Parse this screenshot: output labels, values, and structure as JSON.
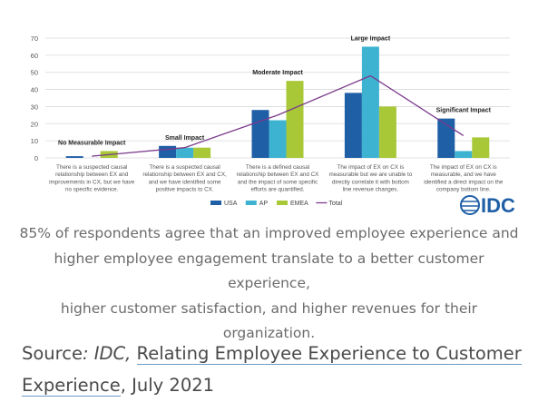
{
  "chart_data": {
    "type": "bar",
    "categories": [
      "There is a suspected causal relationship between EX and improvements in CX, but we have no specific evidence.",
      "There is a suspected causal relationship between EX and CX, and we have identified some positive impacts to CX.",
      "There is a defined causal relationship between EX and CX and the impact of some specific efforts are quantified.",
      "The impact of EX on CX is measurable but we are unable to directly correlate it with bottom line revenue changes.",
      "The impact of EX on CX is measurable, and we have identified a direct impact on the company bottom line."
    ],
    "category_lines": [
      [
        "There is a suspected causal",
        "relationship between EX and",
        "improvements in CX, but we have",
        "no specific evidence."
      ],
      [
        "There is a suspected causal",
        "relationship between EX and CX,",
        "and we have identified some",
        "positive impacts to CX."
      ],
      [
        "There is a defined causal",
        "relationship between EX and CX",
        "and the impact of some specific",
        "efforts are quantified."
      ],
      [
        "The impact of EX on CX is",
        "measurable but we are unable to",
        "directly correlate it with bottom",
        "line revenue changes."
      ],
      [
        "The impact of EX on CX is",
        "measurable, and we have",
        "identified a direct impact on the",
        "company bottom line."
      ]
    ],
    "group_labels": [
      "No Measurable Impact",
      "Small Impact",
      "Moderate Impact",
      "Large  Impact",
      "Significant  Impact"
    ],
    "series": [
      {
        "name": "USA",
        "color": "#1f5fa6",
        "values": [
          1,
          7,
          28,
          38,
          23
        ]
      },
      {
        "name": "AP",
        "color": "#3eb3d1",
        "values": [
          0,
          6,
          22,
          65,
          4
        ]
      },
      {
        "name": "EMEA",
        "color": "#a8c838",
        "values": [
          4,
          6,
          45,
          30,
          12
        ]
      }
    ],
    "line_series": {
      "name": "Total",
      "color": "#7b3a8c",
      "values": [
        1,
        6,
        25,
        48,
        13
      ]
    },
    "ylim": [
      0,
      70
    ],
    "yticks": [
      0,
      10,
      20,
      30,
      40,
      50,
      60,
      70
    ],
    "grid": true,
    "legend_position": "bottom-center"
  },
  "logo": {
    "text": "IDC"
  },
  "caption": {
    "lines": [
      "85% of respondents agree that an improved employee experience and",
      "higher employee engagement translate to a better customer experience,",
      "higher customer satisfaction, and higher revenues for their organization."
    ]
  },
  "source": {
    "prefix": "Source",
    "colon": ":",
    "publisher": " IDC,",
    "link_line1": "Relating Employee Experience to Customer",
    "link_line2": "Experience",
    "suffix": ", July 2021"
  }
}
